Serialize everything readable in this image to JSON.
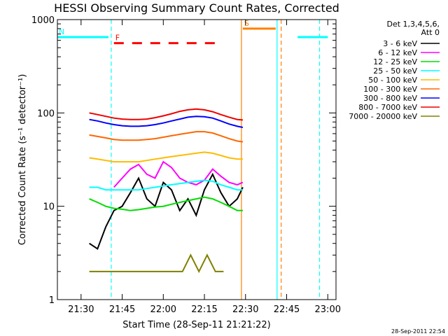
{
  "chart_data": {
    "type": "line",
    "title": "HESSI Observing Summary Count Rates, Corrected",
    "xlabel": "Start Time (28-Sep-11 21:21:22)",
    "ylabel": "Corrected Count Rate (s⁻¹ detector⁻¹)",
    "y_scale": "log",
    "ylim": [
      1,
      1000
    ],
    "xlim": [
      "21:21:22",
      "23:03:00"
    ],
    "x_tick_labels": [
      "21:30",
      "21:45",
      "22:00",
      "22:15",
      "22:30",
      "22:45",
      "23:00"
    ],
    "y_tick_labels": [
      "1",
      "10",
      "100",
      "1000"
    ],
    "timestamp": "28-Sep-2011 22:54",
    "legend_header": [
      "Det 1,3,4,5,6,",
      "Att 0"
    ],
    "legend_position": "top-right",
    "series": [
      {
        "name": "3 - 6 keV",
        "color": "#000000",
        "x": [
          "21:33",
          "21:36",
          "21:39",
          "21:42",
          "21:45",
          "21:48",
          "21:51",
          "21:54",
          "21:57",
          "22:00",
          "22:03",
          "22:06",
          "22:09",
          "22:12",
          "22:15",
          "22:18",
          "22:21",
          "22:24",
          "22:27",
          "22:29"
        ],
        "values": [
          4,
          3.5,
          6,
          9,
          10,
          14,
          20,
          12,
          10,
          18,
          15,
          9,
          12,
          8,
          15,
          22,
          14,
          10,
          12,
          16
        ]
      },
      {
        "name": "6 - 12 keV",
        "color": "#ff00ff",
        "x": [
          "21:33",
          "21:36",
          "21:39",
          "21:42",
          "21:45",
          "21:48",
          "21:51",
          "21:54",
          "21:57",
          "22:00",
          "22:03",
          "22:06",
          "22:09",
          "22:12",
          "22:15",
          "22:18",
          "22:21",
          "22:24",
          "22:27",
          "22:29"
        ],
        "values": [
          null,
          null,
          null,
          16,
          20,
          25,
          28,
          22,
          20,
          30,
          26,
          20,
          18,
          17,
          19,
          25,
          21,
          18,
          17,
          18
        ]
      },
      {
        "name": "12 - 25 keV",
        "color": "#00dd00",
        "x": [
          "21:33",
          "21:36",
          "21:39",
          "21:42",
          "21:45",
          "21:48",
          "21:51",
          "21:54",
          "21:57",
          "22:00",
          "22:03",
          "22:06",
          "22:09",
          "22:12",
          "22:15",
          "22:18",
          "22:21",
          "22:24",
          "22:27",
          "22:29"
        ],
        "values": [
          12,
          11,
          10,
          9.5,
          9.3,
          9,
          9.2,
          9.5,
          9.8,
          10,
          10.5,
          11,
          11.5,
          12,
          12.5,
          12,
          11,
          10,
          9,
          9
        ]
      },
      {
        "name": "25 - 50 keV",
        "color": "#00ffff",
        "x": [
          "21:33",
          "21:36",
          "21:39",
          "21:42",
          "21:45",
          "21:48",
          "21:51",
          "21:54",
          "21:57",
          "22:00",
          "22:03",
          "22:06",
          "22:09",
          "22:12",
          "22:15",
          "22:18",
          "22:21",
          "22:24",
          "22:27",
          "22:29"
        ],
        "values": [
          16,
          16,
          15,
          15,
          15,
          15,
          15,
          15.5,
          16,
          16.5,
          17,
          17.5,
          18,
          18.5,
          19,
          18.5,
          17,
          16,
          15,
          15
        ]
      },
      {
        "name": "50 - 100 keV",
        "color": "#ffbb00",
        "x": [
          "21:33",
          "21:36",
          "21:39",
          "21:42",
          "21:45",
          "21:48",
          "21:51",
          "21:54",
          "21:57",
          "22:00",
          "22:03",
          "22:06",
          "22:09",
          "22:12",
          "22:15",
          "22:18",
          "22:21",
          "22:24",
          "22:27",
          "22:29"
        ],
        "values": [
          33,
          32,
          31,
          30,
          30,
          30,
          30,
          31,
          32,
          33,
          34,
          35,
          36,
          37,
          38,
          37,
          35,
          33,
          32,
          32
        ]
      },
      {
        "name": "100 - 300 keV",
        "color": "#ff6600",
        "x": [
          "21:33",
          "21:36",
          "21:39",
          "21:42",
          "21:45",
          "21:48",
          "21:51",
          "21:54",
          "21:57",
          "22:00",
          "22:03",
          "22:06",
          "22:09",
          "22:12",
          "22:15",
          "22:18",
          "22:21",
          "22:24",
          "22:27",
          "22:29"
        ],
        "values": [
          58,
          56,
          54,
          52,
          51,
          51,
          51,
          52,
          53,
          55,
          57,
          59,
          61,
          63,
          63,
          61,
          57,
          53,
          50,
          49
        ]
      },
      {
        "name": "300 - 800 keV",
        "color": "#0000ff",
        "x": [
          "21:33",
          "21:36",
          "21:39",
          "21:42",
          "21:45",
          "21:48",
          "21:51",
          "21:54",
          "21:57",
          "22:00",
          "22:03",
          "22:06",
          "22:09",
          "22:12",
          "22:15",
          "22:18",
          "22:21",
          "22:24",
          "22:27",
          "22:29"
        ],
        "values": [
          85,
          82,
          78,
          75,
          73,
          72,
          72,
          73,
          75,
          78,
          82,
          86,
          90,
          92,
          91,
          88,
          82,
          76,
          72,
          70
        ]
      },
      {
        "name": "800 - 7000 keV",
        "color": "#ee0000",
        "x": [
          "21:33",
          "21:36",
          "21:39",
          "21:42",
          "21:45",
          "21:48",
          "21:51",
          "21:54",
          "21:57",
          "22:00",
          "22:03",
          "22:06",
          "22:09",
          "22:12",
          "22:15",
          "22:18",
          "22:21",
          "22:24",
          "22:27",
          "22:29"
        ],
        "values": [
          100,
          96,
          92,
          88,
          86,
          85,
          85,
          86,
          89,
          93,
          98,
          104,
          108,
          110,
          108,
          103,
          96,
          90,
          85,
          84
        ]
      },
      {
        "name": "7000 - 20000 keV",
        "color": "#808000",
        "x": [
          "21:33",
          "22:04",
          "22:07",
          "22:10",
          "22:13",
          "22:16",
          "22:19",
          "22:22"
        ],
        "values": [
          2,
          2,
          2,
          3,
          2,
          3,
          2,
          2
        ]
      }
    ],
    "flag_bars": [
      {
        "label": "N",
        "color": "#00ffff",
        "start": "21:21:22",
        "end": "21:40:00",
        "level": 650
      },
      {
        "label": "F",
        "color": "#ff0000",
        "start": "21:42:00",
        "end": "22:21:00",
        "level": 560,
        "style": "dashed"
      },
      {
        "label": "S",
        "color": "#ff8000",
        "start": "22:29:00",
        "end": "22:41:00",
        "level": 800
      },
      {
        "label": "",
        "color": "#00ffff",
        "start": "22:49:00",
        "end": "23:00:00",
        "level": 650
      }
    ],
    "markers": [
      {
        "time": "21:41:00",
        "color": "#00ffff",
        "style": "dashed"
      },
      {
        "time": "22:28:30",
        "color": "#ff8000",
        "style": "solid"
      },
      {
        "time": "22:41:30",
        "color": "#00ffff",
        "style": "solid"
      },
      {
        "time": "22:43:00",
        "color": "#ff8000",
        "style": "dashed"
      },
      {
        "time": "22:57:00",
        "color": "#00ffff",
        "style": "dashed"
      }
    ]
  }
}
